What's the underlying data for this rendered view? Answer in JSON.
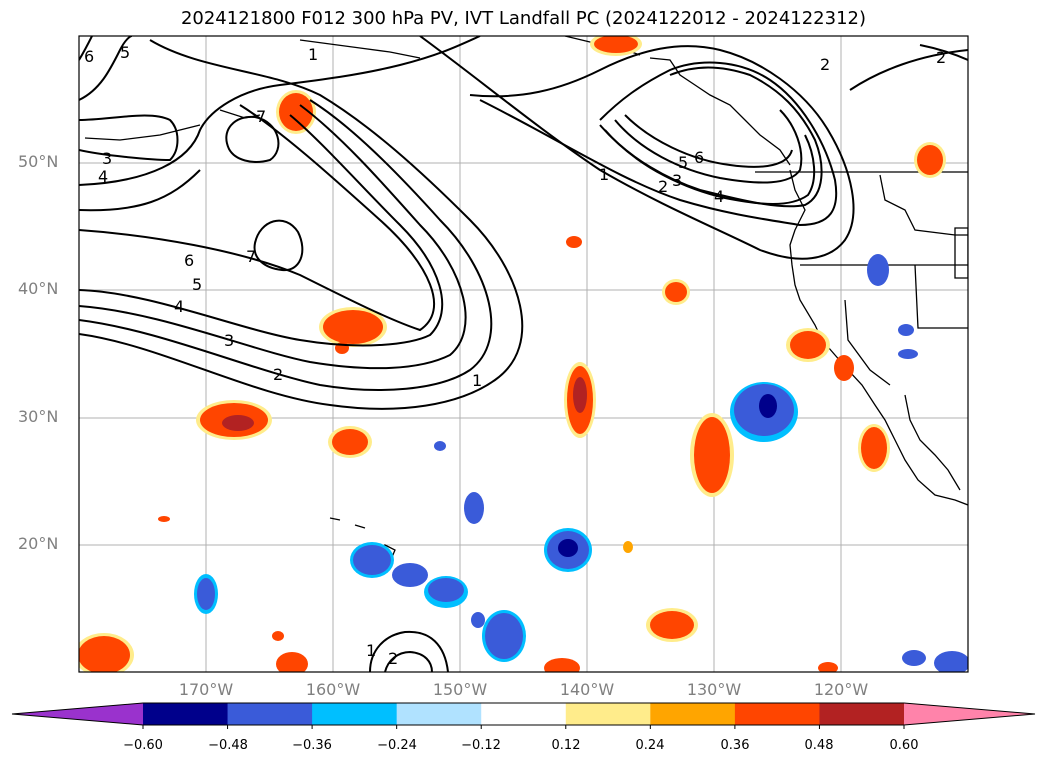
{
  "title": "2024121800 F012 300 hPa PV, IVT Landfall PC (2024122012 - 2024122312)",
  "lat_labels": [
    "50°N",
    "40°N",
    "30°N",
    "20°N"
  ],
  "lon_labels": [
    "170°W",
    "160°W",
    "150°W",
    "140°W",
    "130°W",
    "120°W"
  ],
  "contour_labels": [
    "1",
    "1",
    "1",
    "2",
    "2",
    "2",
    "3",
    "3",
    "3",
    "4",
    "4",
    "4",
    "5",
    "5",
    "5",
    "6",
    "6",
    "6",
    "7",
    "7",
    "2",
    "1",
    "2"
  ],
  "colorbar": {
    "ticks": [
      "−0.60",
      "−0.48",
      "−0.36",
      "−0.24",
      "−0.12",
      "0.12",
      "0.24",
      "0.36",
      "0.48",
      "0.60"
    ],
    "colors": [
      "#9a32cd",
      "#00008b",
      "#3a5bd9",
      "#00bfff",
      "#b0e2ff",
      "#ffffff",
      "#ffec8b",
      "#ffa500",
      "#ff4500",
      "#b22222",
      "#ff83aa"
    ]
  }
}
